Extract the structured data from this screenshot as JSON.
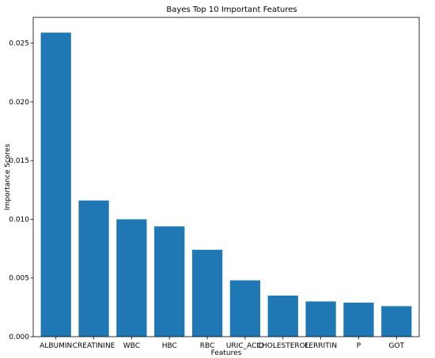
{
  "chart_data": {
    "type": "bar",
    "title": "Bayes Top 10 Important Features",
    "xlabel": "Features",
    "ylabel": "Importance Scores",
    "categories": [
      "ALBUMIN",
      "CREATININE",
      "WBC",
      "HBC",
      "RBC",
      "URIC_ACID",
      "CHOLESTEROL",
      "FERRITIN",
      "P",
      "GOT"
    ],
    "values": [
      0.0259,
      0.0116,
      0.01,
      0.0094,
      0.0074,
      0.0048,
      0.0035,
      0.003,
      0.0029,
      0.0026
    ],
    "ylim": [
      0,
      0.0272
    ],
    "yticks": [
      "0.000",
      "0.005",
      "0.010",
      "0.015",
      "0.020",
      "0.025"
    ],
    "ytick_values": [
      0,
      0.005,
      0.01,
      0.015,
      0.02,
      0.025
    ],
    "bar_color": "#1f77b4",
    "grid": false,
    "legend": "none"
  }
}
